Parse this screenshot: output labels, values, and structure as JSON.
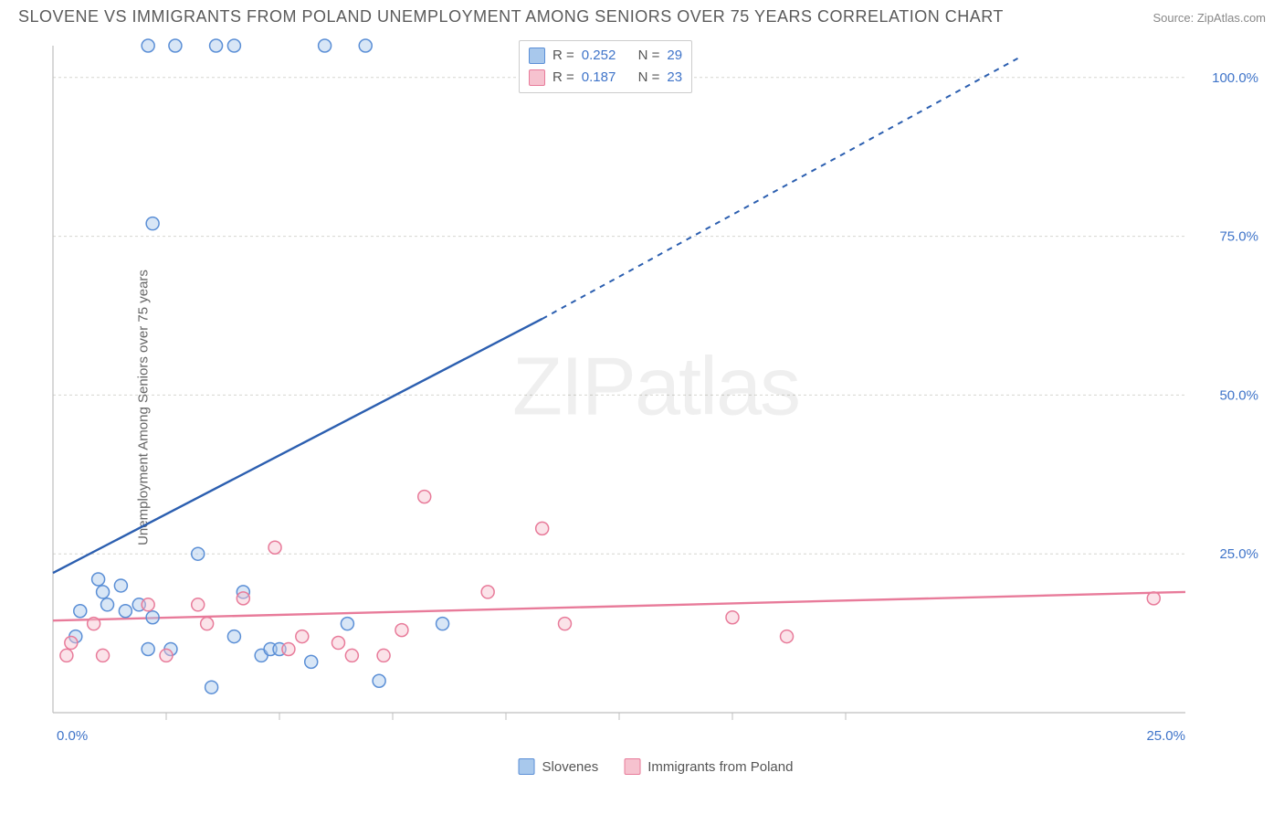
{
  "title": "SLOVENE VS IMMIGRANTS FROM POLAND UNEMPLOYMENT AMONG SENIORS OVER 75 YEARS CORRELATION CHART",
  "source": "Source: ZipAtlas.com",
  "y_label": "Unemployment Among Seniors over 75 years",
  "watermark_a": "ZIP",
  "watermark_b": "atlas",
  "chart": {
    "type": "scatter",
    "xlim": [
      0,
      25
    ],
    "ylim": [
      0,
      105
    ],
    "x_ticks": [
      0,
      25
    ],
    "x_tick_labels": [
      "0.0%",
      "25.0%"
    ],
    "x_minor_ticks": [
      2.5,
      5,
      7.5,
      10,
      12.5,
      15,
      17.5
    ],
    "y_ticks": [
      25,
      50,
      75,
      100
    ],
    "y_tick_labels": [
      "25.0%",
      "50.0%",
      "75.0%",
      "100.0%"
    ],
    "background_color": "#ffffff",
    "grid_color": "#d6d6d0",
    "marker_radius": 7,
    "series": [
      {
        "key": "slovenes",
        "label": "Slovenes",
        "color_fill": "#a8c8ec",
        "color_stroke": "#5b8fd6",
        "r_value": "0.252",
        "n_value": "29",
        "trend": {
          "x1": 0,
          "y1": 22,
          "x2_solid": 10.8,
          "y2_solid": 62,
          "x2": 21.3,
          "y2": 103,
          "color": "#2c5fb0"
        },
        "points": [
          [
            2.1,
            105
          ],
          [
            2.7,
            105
          ],
          [
            3.6,
            105
          ],
          [
            4.0,
            105
          ],
          [
            6.0,
            105
          ],
          [
            6.9,
            105
          ],
          [
            2.2,
            77
          ],
          [
            0.6,
            16
          ],
          [
            0.5,
            12
          ],
          [
            1.0,
            21
          ],
          [
            1.1,
            19
          ],
          [
            1.2,
            17
          ],
          [
            1.5,
            20
          ],
          [
            1.6,
            16
          ],
          [
            1.9,
            17
          ],
          [
            2.1,
            10
          ],
          [
            2.2,
            15
          ],
          [
            2.6,
            10
          ],
          [
            3.2,
            25
          ],
          [
            3.5,
            4
          ],
          [
            4.0,
            12
          ],
          [
            4.2,
            19
          ],
          [
            4.6,
            9
          ],
          [
            4.8,
            10
          ],
          [
            5.0,
            10
          ],
          [
            5.7,
            8
          ],
          [
            6.5,
            14
          ],
          [
            7.2,
            5
          ],
          [
            8.6,
            14
          ]
        ]
      },
      {
        "key": "poland",
        "label": "Immigrants from Poland",
        "color_fill": "#f6c2cf",
        "color_stroke": "#e87b9a",
        "r_value": "0.187",
        "n_value": "23",
        "trend": {
          "x1": 0,
          "y1": 14.5,
          "x2_solid": 25,
          "y2_solid": 19,
          "x2": 25,
          "y2": 19,
          "color": "#e87b9a"
        },
        "points": [
          [
            0.3,
            9
          ],
          [
            0.4,
            11
          ],
          [
            0.9,
            14
          ],
          [
            1.1,
            9
          ],
          [
            2.1,
            17
          ],
          [
            2.5,
            9
          ],
          [
            3.2,
            17
          ],
          [
            3.4,
            14
          ],
          [
            4.2,
            18
          ],
          [
            4.9,
            26
          ],
          [
            5.2,
            10
          ],
          [
            5.5,
            12
          ],
          [
            6.3,
            11
          ],
          [
            6.6,
            9
          ],
          [
            7.3,
            9
          ],
          [
            7.7,
            13
          ],
          [
            8.2,
            34
          ],
          [
            9.6,
            19
          ],
          [
            10.8,
            29
          ],
          [
            11.3,
            14
          ],
          [
            15.0,
            15
          ],
          [
            16.2,
            12
          ],
          [
            24.3,
            18
          ]
        ]
      }
    ]
  },
  "legend_top": {
    "r_label": "R =",
    "n_label": "N ="
  }
}
